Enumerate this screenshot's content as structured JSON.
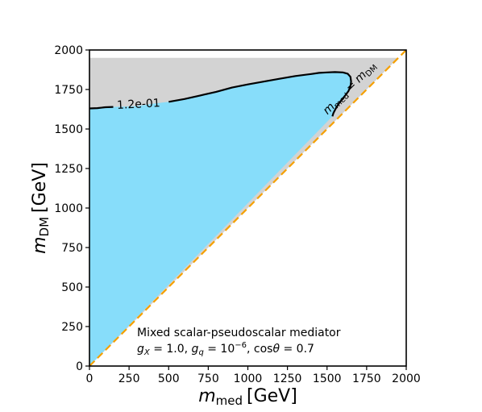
{
  "chart_data": {
    "type": "area",
    "xlim": [
      0,
      2000
    ],
    "ylim": [
      0,
      2000
    ],
    "xticks": [
      0,
      250,
      500,
      750,
      1000,
      1250,
      1500,
      1750,
      2000
    ],
    "yticks": [
      0,
      250,
      500,
      750,
      1000,
      1250,
      1500,
      1750,
      2000
    ],
    "xtick_labels": [
      "0",
      "250",
      "500",
      "750",
      "1000",
      "1250",
      "1500",
      "1750",
      "2000"
    ],
    "ytick_labels": [
      "0",
      "250",
      "500",
      "750",
      "1000",
      "1250",
      "1500",
      "1750",
      "2000"
    ],
    "xlabel": {
      "symbol": "m",
      "subscript": "med",
      "unit": "[GeV]"
    },
    "ylabel": {
      "symbol": "m",
      "subscript": "DM",
      "unit": "[GeV]"
    },
    "grid": false,
    "colors": {
      "excluded_region": "#d3d3d3",
      "allowed_region": "#87ddfa",
      "contour": "#000000",
      "diagonal": "#f5a000"
    },
    "overabundant_region": {
      "polygon": [
        [
          0,
          1950
        ],
        [
          1950,
          1950
        ],
        [
          0,
          0
        ]
      ]
    },
    "allowed_region": {
      "boundary": [
        [
          0,
          1630
        ],
        [
          50,
          1632
        ],
        [
          100,
          1638
        ],
        [
          150,
          1640
        ],
        [
          200,
          1641
        ],
        [
          250,
          1643
        ],
        [
          300,
          1645
        ],
        [
          350,
          1652
        ],
        [
          400,
          1660
        ],
        [
          500,
          1672
        ],
        [
          600,
          1690
        ],
        [
          700,
          1712
        ],
        [
          800,
          1735
        ],
        [
          900,
          1762
        ],
        [
          1000,
          1782
        ],
        [
          1100,
          1800
        ],
        [
          1200,
          1818
        ],
        [
          1300,
          1835
        ],
        [
          1400,
          1848
        ],
        [
          1450,
          1855
        ],
        [
          1500,
          1858
        ],
        [
          1550,
          1860
        ],
        [
          1600,
          1858
        ],
        [
          1630,
          1850
        ],
        [
          1648,
          1830
        ],
        [
          1652,
          1800
        ],
        [
          1648,
          1770
        ],
        [
          1635,
          1740
        ],
        [
          1615,
          1712
        ],
        [
          1595,
          1688
        ],
        [
          1575,
          1662
        ],
        [
          1555,
          1630
        ],
        [
          1540,
          1600
        ],
        [
          1534,
          1580
        ],
        [
          0,
          0
        ]
      ]
    },
    "contour": {
      "label": "1.2e-01",
      "label_at": [
        310,
        1655
      ],
      "label_gap_x": [
        150,
        440
      ],
      "points": [
        [
          0,
          1630
        ],
        [
          50,
          1632
        ],
        [
          100,
          1638
        ],
        [
          150,
          1640
        ],
        [
          200,
          1641
        ],
        [
          250,
          1643
        ],
        [
          300,
          1645
        ],
        [
          350,
          1652
        ],
        [
          400,
          1660
        ],
        [
          500,
          1672
        ],
        [
          600,
          1690
        ],
        [
          700,
          1712
        ],
        [
          800,
          1735
        ],
        [
          900,
          1762
        ],
        [
          1000,
          1782
        ],
        [
          1100,
          1800
        ],
        [
          1200,
          1818
        ],
        [
          1300,
          1835
        ],
        [
          1400,
          1848
        ],
        [
          1450,
          1855
        ],
        [
          1500,
          1858
        ],
        [
          1550,
          1860
        ],
        [
          1600,
          1858
        ],
        [
          1630,
          1850
        ],
        [
          1648,
          1830
        ],
        [
          1652,
          1800
        ],
        [
          1648,
          1770
        ],
        [
          1635,
          1740
        ],
        [
          1615,
          1712
        ],
        [
          1595,
          1688
        ],
        [
          1575,
          1662
        ],
        [
          1555,
          1630
        ],
        [
          1540,
          1600
        ],
        [
          1534,
          1580
        ]
      ]
    },
    "diagonal": {
      "x": [
        0,
        2000
      ],
      "y": [
        0,
        2000
      ],
      "style": "dashed",
      "label": {
        "lhs_symbol": "m",
        "lhs_sub": "med",
        "eq": "=",
        "rhs_symbol": "m",
        "rhs_sub": "DM"
      },
      "label_at": [
        1700,
        1700
      ]
    },
    "annotation": {
      "line1": "Mixed scalar-pseudoscalar mediator",
      "line2": {
        "gx_symbol": "g",
        "gx_sub": "X",
        "gx_value": " = 1.0, ",
        "gq_symbol": "g",
        "gq_sub": "q",
        "gq_value": " = 10",
        "gq_exp": "−6",
        "sep": ", ",
        "cos_text": "cos",
        "theta": "θ",
        "cos_value": " = 0.7"
      }
    }
  }
}
